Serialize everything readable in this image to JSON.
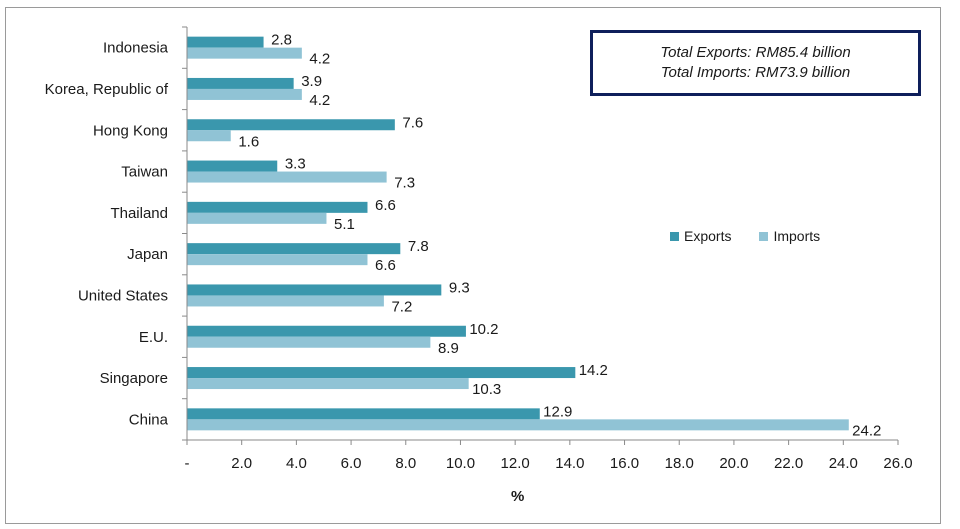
{
  "chart_data": {
    "type": "bar",
    "orientation": "horizontal",
    "title": "",
    "xlabel": "%",
    "ylabel": "",
    "xlim": [
      0,
      26
    ],
    "x_ticks": [
      "-",
      "2.0",
      "4.0",
      "6.0",
      "8.0",
      "10.0",
      "12.0",
      "14.0",
      "16.0",
      "18.0",
      "20.0",
      "22.0",
      "24.0",
      "26.0"
    ],
    "categories": [
      "Indonesia",
      "Korea, Republic of",
      "Hong Kong",
      "Taiwan",
      "Thailand",
      "Japan",
      "United States",
      "E.U.",
      "Singapore",
      "China"
    ],
    "series": [
      {
        "name": "Exports",
        "color": "#3a97ad",
        "values": [
          2.8,
          3.9,
          7.6,
          3.3,
          6.6,
          7.8,
          9.3,
          10.2,
          14.2,
          12.9
        ],
        "labels": [
          "2.8",
          "3.9",
          "7.6",
          "3.3",
          "6.6",
          "7.8",
          "9.3",
          "10.2",
          "14.2",
          "12.9"
        ]
      },
      {
        "name": "Imports",
        "color": "#90c3d5",
        "values": [
          4.2,
          4.2,
          1.6,
          7.3,
          5.1,
          6.6,
          7.2,
          8.9,
          10.3,
          24.2
        ],
        "labels": [
          "4.2",
          "4.2",
          "1.6",
          "7.3",
          "5.1",
          "6.6",
          "7.2",
          "8.9",
          "10.3",
          "24.2"
        ]
      }
    ],
    "legend_position": "right",
    "grid": false
  },
  "summary": {
    "line1": "Total Exports: RM85.4 billion",
    "line2": "Total Imports: RM73.9 billion"
  }
}
